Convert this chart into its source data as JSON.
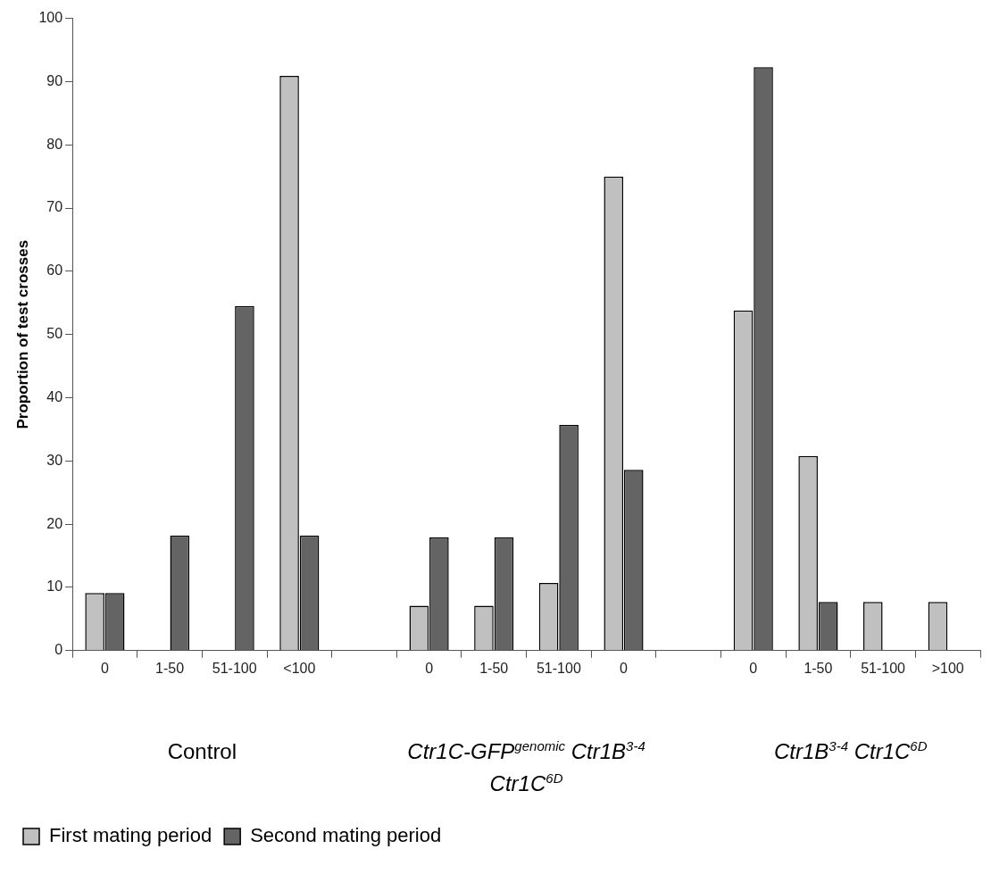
{
  "chart_data": {
    "type": "bar",
    "ylabel": "Proportion of test crosses",
    "categories": [
      "0",
      "1-50",
      "51-100",
      "<100",
      null,
      "0",
      "1-50",
      "51-100",
      "0",
      null,
      "0",
      "1-50",
      "51-100",
      ">100"
    ],
    "series": [
      {
        "name": "First mating period",
        "color": "#c0c0c0",
        "values": [
          9.1,
          null,
          null,
          90.9,
          null,
          7.1,
          7.1,
          10.7,
          75,
          null,
          53.8,
          30.8,
          7.7,
          7.7
        ]
      },
      {
        "name": "Second mating period",
        "color": "#646464",
        "values": [
          9.1,
          18.2,
          54.5,
          18.2,
          null,
          17.9,
          17.9,
          35.7,
          28.6,
          null,
          92.3,
          7.7,
          null,
          null
        ]
      }
    ],
    "ylim": [
      0,
      100
    ],
    "yticks": [
      0,
      10,
      20,
      30,
      40,
      50,
      60,
      70,
      80,
      90,
      100
    ],
    "grid": false,
    "legend": "bottom left",
    "annotations": [
      "Control",
      "Ctr1C-GFP$^{genomic}$ Ctr1B$^{3-4}$ Ctr1C$^{6D}$",
      "Ctr1B$^{3-4}$ Ctr1C$^{6D}$"
    ]
  }
}
